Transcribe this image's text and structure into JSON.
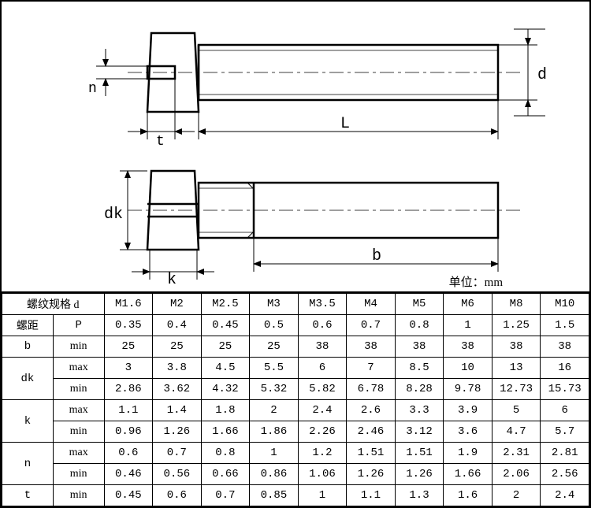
{
  "unit_label": "单位：mm",
  "diagram": {
    "labels": {
      "n": "n",
      "t": "t",
      "L": "L",
      "d": "d",
      "dk": "dk",
      "k": "k",
      "b": "b"
    },
    "stroke": "#000000",
    "thin": 1,
    "thick": 2.5,
    "font_family_dim": "Courier New",
    "font_size_dim": 18
  },
  "table": {
    "header_label_spec": "螺纹规格",
    "header_sym_spec": "d",
    "row_pitch_label": "螺距",
    "row_pitch_sym": "P",
    "min": "min",
    "max": "max",
    "sizes": [
      "M1.6",
      "M2",
      "M2.5",
      "M3",
      "M3.5",
      "M4",
      "M5",
      "M6",
      "M8",
      "M10"
    ],
    "pitch": [
      "0.35",
      "0.4",
      "0.45",
      "0.5",
      "0.6",
      "0.7",
      "0.8",
      "1",
      "1.25",
      "1.5"
    ],
    "b_min": [
      "25",
      "25",
      "25",
      "25",
      "38",
      "38",
      "38",
      "38",
      "38",
      "38"
    ],
    "dk_max": [
      "3",
      "3.8",
      "4.5",
      "5.5",
      "6",
      "7",
      "8.5",
      "10",
      "13",
      "16"
    ],
    "dk_min": [
      "2.86",
      "3.62",
      "4.32",
      "5.32",
      "5.82",
      "6.78",
      "8.28",
      "9.78",
      "12.73",
      "15.73"
    ],
    "k_max": [
      "1.1",
      "1.4",
      "1.8",
      "2",
      "2.4",
      "2.6",
      "3.3",
      "3.9",
      "5",
      "6"
    ],
    "k_min": [
      "0.96",
      "1.26",
      "1.66",
      "1.86",
      "2.26",
      "2.46",
      "3.12",
      "3.6",
      "4.7",
      "5.7"
    ],
    "n_max": [
      "0.6",
      "0.7",
      "0.8",
      "1",
      "1.2",
      "1.51",
      "1.51",
      "1.9",
      "2.31",
      "2.81"
    ],
    "n_min": [
      "0.46",
      "0.56",
      "0.66",
      "0.86",
      "1.06",
      "1.26",
      "1.26",
      "1.66",
      "2.06",
      "2.56"
    ],
    "t_min": [
      "0.45",
      "0.6",
      "0.7",
      "0.85",
      "1",
      "1.1",
      "1.3",
      "1.6",
      "2",
      "2.4"
    ],
    "row_syms": {
      "b": "b",
      "dk": "dk",
      "k": "k",
      "n": "n",
      "t": "t"
    }
  }
}
